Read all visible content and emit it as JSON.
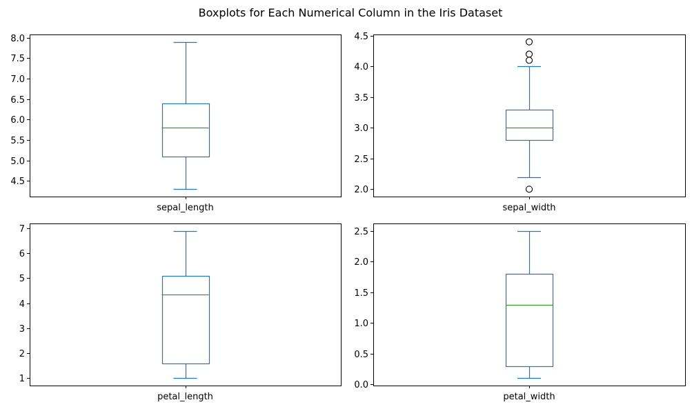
{
  "chart_data": {
    "type": "box",
    "title": "Boxplots for Each Numerical Column in the Iris Dataset",
    "colors": {
      "box": "#1f77b4",
      "median": "#2ca02c",
      "flier": "#000000",
      "axes": "#000000"
    },
    "grid": false,
    "subplots": [
      {
        "column": "sepal_length",
        "ylim": [
          4.12,
          8.08
        ],
        "yticks": [
          4.5,
          5.0,
          5.5,
          6.0,
          6.5,
          7.0,
          7.5,
          8.0
        ],
        "ytick_labels": [
          "4.5",
          "5.0",
          "5.5",
          "6.0",
          "6.5",
          "7.0",
          "7.5",
          "8.0"
        ],
        "whisker_low": 4.3,
        "q1": 5.1,
        "median": 5.8,
        "q3": 6.4,
        "whisker_high": 7.9,
        "outliers": []
      },
      {
        "column": "sepal_width",
        "ylim": [
          1.88,
          4.52
        ],
        "yticks": [
          2.0,
          2.5,
          3.0,
          3.5,
          4.0,
          4.5
        ],
        "ytick_labels": [
          "2.0",
          "2.5",
          "3.0",
          "3.5",
          "4.0",
          "4.5"
        ],
        "whisker_low": 2.2,
        "q1": 2.8,
        "median": 3.0,
        "q3": 3.3,
        "whisker_high": 4.0,
        "outliers": [
          2.0,
          4.1,
          4.2,
          4.4
        ]
      },
      {
        "column": "petal_length",
        "ylim": [
          0.705,
          7.195
        ],
        "yticks": [
          1,
          2,
          3,
          4,
          5,
          6,
          7
        ],
        "ytick_labels": [
          "1",
          "2",
          "3",
          "4",
          "5",
          "6",
          "7"
        ],
        "whisker_low": 1.0,
        "q1": 1.6,
        "median": 4.35,
        "q3": 5.1,
        "whisker_high": 6.9,
        "outliers": []
      },
      {
        "column": "petal_width",
        "ylim": [
          -0.02,
          2.62
        ],
        "yticks": [
          0.0,
          0.5,
          1.0,
          1.5,
          2.0,
          2.5
        ],
        "ytick_labels": [
          "0.0",
          "0.5",
          "1.0",
          "1.5",
          "2.0",
          "2.5"
        ],
        "whisker_low": 0.1,
        "q1": 0.3,
        "median": 1.3,
        "q3": 1.8,
        "whisker_high": 2.5,
        "outliers": []
      }
    ]
  }
}
